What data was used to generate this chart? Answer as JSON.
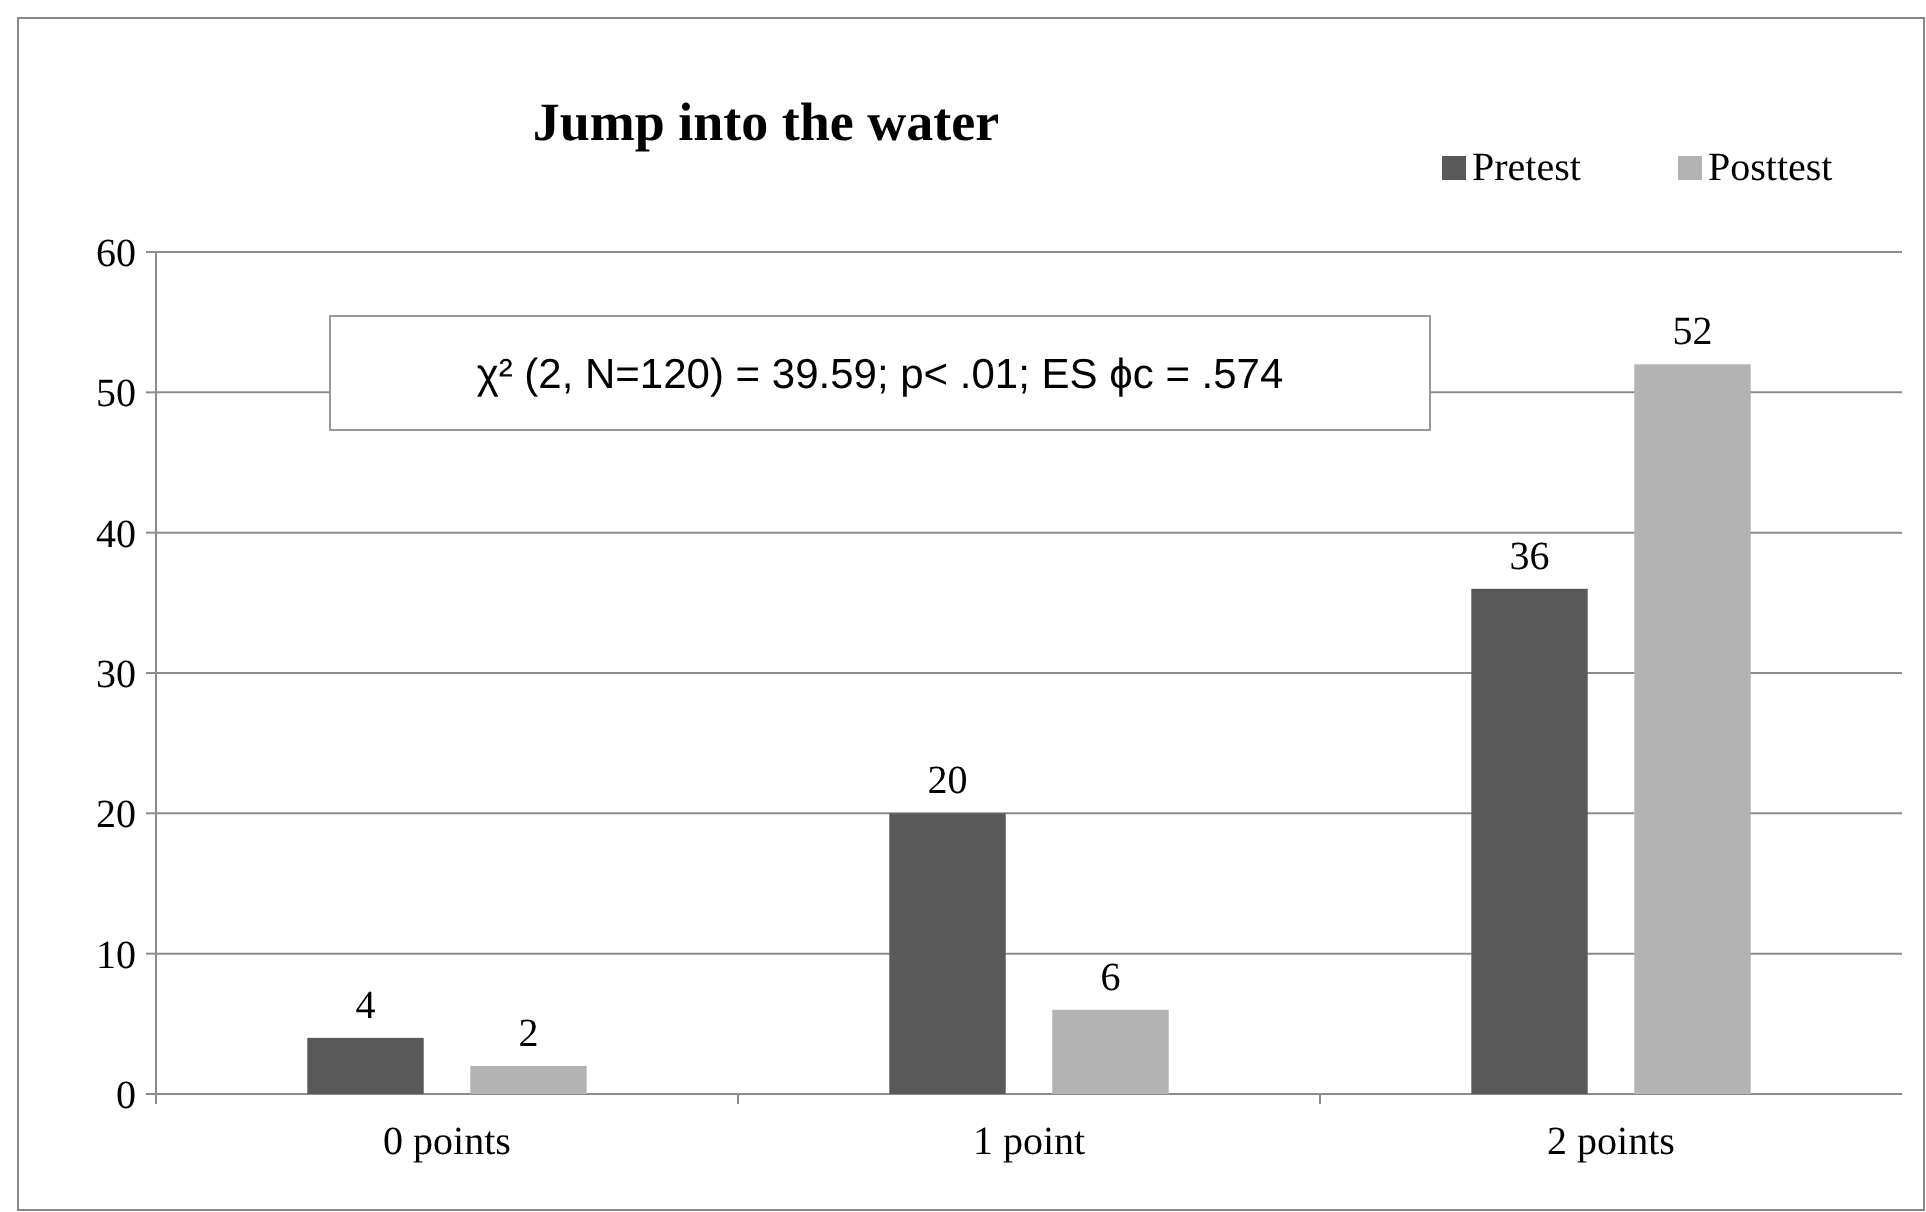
{
  "chart_data": {
    "type": "bar",
    "title": "Jump into the water",
    "categories": [
      "0 points",
      "1 point",
      "2 points"
    ],
    "series": [
      {
        "name": "Pretest",
        "color": "#595959",
        "values": [
          4,
          20,
          36
        ]
      },
      {
        "name": "Posttest",
        "color": "#b3b3b3",
        "values": [
          2,
          6,
          52
        ]
      }
    ],
    "ylim": [
      0,
      60
    ],
    "yticks": [
      0,
      10,
      20,
      30,
      40,
      50,
      60
    ],
    "grid": "y",
    "legend": "top right",
    "data_labels": true,
    "annotations": [
      "χ² (2, N=120) = 39.59; p< .01; ES ϕc = .574"
    ]
  }
}
